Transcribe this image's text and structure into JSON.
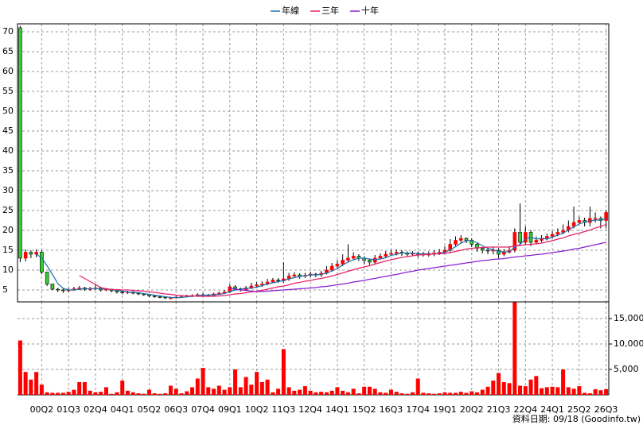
{
  "chart_data": [
    {
      "type": "candlestick",
      "categories": [
        null,
        null,
        null,
        null,
        "00Q2",
        null,
        null,
        null,
        null,
        "01Q3",
        null,
        null,
        null,
        null,
        "02Q4",
        null,
        null,
        null,
        null,
        "04Q1",
        null,
        null,
        null,
        null,
        "05Q2",
        null,
        null,
        null,
        null,
        "06Q3",
        null,
        null,
        null,
        null,
        "07Q4",
        null,
        null,
        null,
        null,
        "09Q1",
        null,
        null,
        null,
        null,
        "10Q2",
        null,
        null,
        null,
        null,
        "11Q3",
        null,
        null,
        null,
        null,
        "12Q4",
        null,
        null,
        null,
        null,
        "14Q1",
        null,
        null,
        null,
        null,
        "15Q2",
        null,
        null,
        null,
        null,
        "16Q3",
        null,
        null,
        null,
        null,
        "17Q4",
        null,
        null,
        null,
        null,
        "19Q1",
        null,
        null,
        null,
        null,
        "20Q2",
        null,
        null,
        null,
        null,
        "21Q3",
        null,
        null,
        null,
        null,
        "22Q4",
        null,
        null,
        null,
        null,
        "24Q1",
        null,
        null,
        null,
        null,
        "25Q2",
        null,
        null,
        null,
        null,
        "26Q3"
      ],
      "open": [
        71,
        13,
        14.5,
        14,
        14.5,
        9.5,
        6.5,
        5.2,
        5,
        4.8,
        5,
        5.3,
        5.5,
        5.2,
        5.3,
        5.5,
        5,
        5.2,
        4.8,
        4.5,
        4.3,
        4.5,
        4.2,
        4,
        3.8,
        3.5,
        3.3,
        3.2,
        3,
        3,
        3.2,
        3.3,
        3.5,
        3.6,
        3.8,
        3.7,
        3.6,
        4,
        4.2,
        4.5,
        5.8,
        5.3,
        5,
        5.5,
        6,
        6.3,
        6.5,
        7,
        7.5,
        7.3,
        7.8,
        8.5,
        8.8,
        8.5,
        8.7,
        9,
        8.8,
        9.2,
        10,
        11,
        11.5,
        12.5,
        13,
        13.5,
        13,
        12.5,
        12,
        13,
        13.5,
        14,
        14.2,
        14.5,
        14.3,
        14,
        14.2,
        14,
        14,
        14,
        14.3,
        14.5,
        15,
        16.5,
        17.5,
        18,
        17.5,
        16.5,
        15.5,
        15,
        14.8,
        15,
        14,
        14.5,
        15,
        19.5,
        17,
        19.5,
        17,
        17.5,
        18,
        18.5,
        19,
        19.5,
        20,
        21,
        22,
        22.5,
        22,
        23,
        23,
        22.5
      ],
      "high": [
        71.5,
        15.2,
        15,
        15.2,
        15,
        9.5,
        6.5,
        5.5,
        5.3,
        5.5,
        5.8,
        6,
        5.8,
        5.8,
        6.5,
        5.8,
        5.5,
        5.3,
        5,
        4.8,
        4.8,
        4.7,
        4.5,
        4.2,
        4,
        3.7,
        3.5,
        3.4,
        3.3,
        3.5,
        3.6,
        3.8,
        3.9,
        4.2,
        4.2,
        4,
        4.3,
        4.6,
        5,
        6.5,
        6.2,
        5.6,
        6,
        6.8,
        7,
        7.2,
        7.8,
        8,
        8,
        12,
        9.3,
        9.5,
        9.2,
        9.3,
        9.6,
        9.3,
        9.8,
        11,
        11.8,
        12.5,
        14,
        16.5,
        14.5,
        14,
        13.5,
        12.8,
        13.8,
        14.2,
        14.8,
        15,
        15.2,
        15,
        14.7,
        14.8,
        14.7,
        14.6,
        14.7,
        15,
        15.3,
        16,
        17.8,
        18.5,
        18.8,
        18.2,
        18,
        17,
        15.8,
        15.5,
        15.8,
        15.5,
        15.3,
        16,
        20.5,
        26.8,
        21,
        20,
        18.5,
        18.8,
        19.2,
        19.8,
        20.5,
        21.5,
        22.5,
        26,
        23.5,
        23.2,
        26,
        24.5,
        23.5,
        25
      ],
      "low": [
        12,
        12.2,
        13,
        13.2,
        9,
        6,
        5,
        4.5,
        4.3,
        4.5,
        4.8,
        5,
        4.8,
        4.8,
        5,
        4.6,
        4.7,
        4.4,
        4.1,
        3.9,
        4,
        3.9,
        3.7,
        3.5,
        3.2,
        3,
        2.9,
        2.7,
        2.7,
        2.8,
        3,
        3.1,
        3.2,
        3.4,
        3.3,
        3.3,
        3.4,
        3.8,
        4,
        4.2,
        4.8,
        4.6,
        4.7,
        5.2,
        5.6,
        5.8,
        6.2,
        6.8,
        6.8,
        6.8,
        7.3,
        8,
        7.8,
        8,
        8.2,
        8.2,
        8.3,
        8.9,
        9.6,
        10.5,
        11,
        12,
        12.5,
        12.3,
        11.5,
        11,
        11.6,
        12.8,
        13.2,
        13.6,
        13.7,
        13.6,
        13.3,
        13.5,
        13.2,
        13.4,
        13.4,
        13.5,
        13.8,
        14,
        14.4,
        16,
        16.8,
        16.8,
        15.8,
        14.6,
        14.2,
        14,
        14,
        13,
        13.5,
        14.2,
        14.5,
        16.2,
        16.5,
        16,
        16.5,
        17,
        17.5,
        18,
        18.5,
        19,
        19.5,
        20.5,
        21.5,
        21,
        21,
        22,
        20.5,
        20.5
      ],
      "close": [
        13,
        14.5,
        14,
        14.5,
        9.5,
        6.5,
        5.2,
        5,
        4.8,
        5,
        5.3,
        5.5,
        5.2,
        5.3,
        5.5,
        5,
        5.2,
        4.8,
        4.5,
        4.3,
        4.5,
        4.2,
        4,
        3.8,
        3.5,
        3.3,
        3.2,
        3,
        3,
        3.2,
        3.3,
        3.5,
        3.6,
        3.8,
        3.7,
        3.6,
        4,
        4.2,
        4.5,
        5.8,
        5.3,
        5,
        5.5,
        6,
        6.3,
        6.5,
        7,
        7.5,
        7.3,
        7.8,
        8.5,
        8.8,
        8.5,
        8.7,
        9,
        8.8,
        9.2,
        10,
        11,
        11.5,
        12.5,
        13,
        13.5,
        13,
        12.5,
        12,
        13,
        13.5,
        14,
        14.2,
        14.5,
        14.3,
        14,
        14.2,
        14,
        14,
        14,
        14.3,
        14.5,
        15,
        16.5,
        17.5,
        18,
        17.5,
        16.5,
        15.5,
        15,
        14.8,
        15,
        14,
        14.5,
        15,
        19.5,
        17,
        19.5,
        17,
        17.5,
        18,
        18.5,
        19,
        19.5,
        20,
        21,
        22,
        22.5,
        22,
        23,
        23,
        22.5,
        24.5
      ],
      "up_color": "#ff0000",
      "down_color": "#33cc33",
      "series": [
        {
          "name": "年線",
          "color": "#1f6fb0",
          "values": [
            null,
            null,
            null,
            14,
            13.1,
            11.1,
            8.9,
            6.6,
            5.4,
            5,
            5,
            5.2,
            5.3,
            5.3,
            5.4,
            5.3,
            5.3,
            5.1,
            4.9,
            4.7,
            4.5,
            4.4,
            4.3,
            4.1,
            3.9,
            3.7,
            3.5,
            3.3,
            3.1,
            3.1,
            3.1,
            3.3,
            3.4,
            3.6,
            3.7,
            3.7,
            3.8,
            3.9,
            4.1,
            4.6,
            5,
            5.2,
            5.4,
            5.5,
            5.7,
            6.1,
            6.5,
            6.8,
            7.1,
            7.4,
            7.8,
            8.1,
            8.4,
            8.6,
            8.8,
            8.8,
            8.9,
            9.3,
            9.8,
            10.4,
            11.3,
            12,
            12.6,
            13,
            13,
            12.8,
            12.6,
            12.8,
            13.1,
            13.7,
            14,
            14.3,
            14.3,
            14.3,
            14.1,
            14.1,
            14.1,
            14.1,
            14.2,
            14.5,
            15.1,
            15.9,
            16.8,
            17.4,
            17.4,
            16.9,
            16.1,
            15.5,
            15.1,
            14.7,
            14.6,
            14.6,
            15.8,
            16.5,
            17.8,
            18.3,
            17.8,
            18,
            17.8,
            18.3,
            18.8,
            19.3,
            20.1,
            20.9,
            21.6,
            22.1,
            22.4,
            22.6,
            22.6,
            23
          ]
        },
        {
          "name": "三年",
          "color": "#e8206a",
          "values": [
            null,
            null,
            null,
            null,
            null,
            null,
            null,
            null,
            null,
            null,
            null,
            8.6,
            7.9,
            7.1,
            6.4,
            5.6,
            5.3,
            5.1,
            5.1,
            5,
            5,
            4.9,
            4.8,
            4.7,
            4.5,
            4.4,
            4.2,
            4,
            3.9,
            3.7,
            3.6,
            3.5,
            3.5,
            3.4,
            3.4,
            3.4,
            3.4,
            3.5,
            3.6,
            3.8,
            4,
            4.1,
            4.3,
            4.5,
            4.7,
            4.9,
            5.2,
            5.5,
            5.8,
            6,
            6.3,
            6.7,
            6.9,
            7.2,
            7.4,
            7.7,
            7.9,
            8.2,
            8.5,
            8.9,
            9.3,
            9.7,
            10.1,
            10.5,
            10.8,
            11.1,
            11.5,
            11.9,
            12.3,
            12.6,
            12.9,
            13.2,
            13.4,
            13.6,
            13.8,
            13.9,
            14,
            14.1,
            14.1,
            14.2,
            14.4,
            14.7,
            15,
            15.3,
            15.5,
            15.6,
            15.7,
            15.8,
            15.8,
            15.8,
            15.8,
            15.8,
            16.1,
            16.2,
            16.4,
            16.5,
            16.6,
            16.8,
            17.1,
            17.4,
            17.8,
            18.1,
            18.6,
            19,
            19.3,
            19.7,
            20.1,
            20.6,
            21,
            21.5
          ]
        },
        {
          "name": "十年",
          "color": "#8a1fd0",
          "values": [
            null,
            null,
            null,
            null,
            null,
            null,
            null,
            null,
            null,
            null,
            null,
            null,
            null,
            null,
            null,
            null,
            null,
            null,
            null,
            null,
            null,
            null,
            null,
            null,
            null,
            null,
            null,
            null,
            null,
            null,
            null,
            null,
            null,
            null,
            null,
            null,
            null,
            null,
            null,
            5.4,
            5.2,
            5,
            4.9,
            4.7,
            4.6,
            4.6,
            4.7,
            4.8,
            4.9,
            5,
            5.1,
            5.2,
            5.3,
            5.4,
            5.5,
            5.6,
            5.8,
            5.9,
            6.1,
            6.3,
            6.5,
            6.7,
            7,
            7.2,
            7.4,
            7.7,
            7.9,
            8.2,
            8.4,
            8.7,
            8.9,
            9.2,
            9.5,
            9.7,
            10,
            10.2,
            10.4,
            10.6,
            10.8,
            11,
            11.2,
            11.4,
            11.6,
            11.8,
            12,
            12.2,
            12.4,
            12.5,
            12.7,
            12.8,
            12.9,
            13.1,
            13.3,
            13.4,
            13.6,
            13.7,
            13.9,
            14,
            14.2,
            14.4,
            14.6,
            14.8,
            15,
            15.3,
            15.5,
            15.8,
            16.1,
            16.4,
            16.7,
            17
          ]
        }
      ],
      "ylim": [
        2,
        72
      ],
      "yticks": [
        5,
        10,
        15,
        20,
        25,
        30,
        35,
        40,
        45,
        50,
        55,
        60,
        65,
        70
      ],
      "grid": true,
      "legend": "top"
    },
    {
      "type": "bar",
      "values": [
        10700,
        4500,
        3000,
        4500,
        2000,
        500,
        400,
        400,
        400,
        600,
        1000,
        2500,
        2500,
        800,
        500,
        600,
        1500,
        200,
        500,
        2800,
        800,
        500,
        300,
        200,
        1000,
        300,
        200,
        300,
        1800,
        1200,
        300,
        700,
        1500,
        3200,
        5300,
        1500,
        1200,
        1800,
        1000,
        1500,
        5000,
        1500,
        3500,
        2000,
        4500,
        2500,
        3000,
        500,
        1200,
        9000,
        1500,
        800,
        1000,
        1700,
        800,
        500,
        600,
        500,
        800,
        1500,
        800,
        500,
        1200,
        300,
        1600,
        1600,
        1200,
        500,
        400,
        1000,
        600,
        300,
        200,
        500,
        3200,
        400,
        300,
        200,
        300,
        500,
        400,
        400,
        600,
        400,
        700,
        500,
        1000,
        1600,
        2800,
        4300,
        2500,
        2300,
        18200,
        1800,
        1700,
        3000,
        3700,
        1300,
        1500,
        1600,
        1500,
        5000,
        1500,
        1200,
        1700,
        400,
        300,
        1100,
        900,
        1100
      ],
      "color": "#ff0000",
      "ylim": [
        0,
        18280
      ],
      "yticks": [
        {
          "value": 5000,
          "label": "5,000"
        },
        {
          "value": 10000,
          "label": "10,000"
        },
        {
          "value": 15000,
          "label": "15,000"
        }
      ],
      "grid": true
    }
  ],
  "footer": "資料日期: 09/18 (Goodinfo.tw)"
}
